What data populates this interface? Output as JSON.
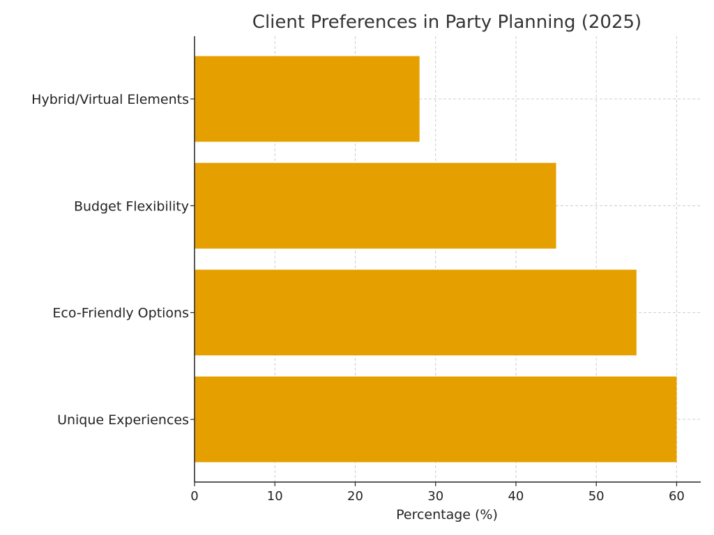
{
  "chart_data": {
    "type": "bar",
    "orientation": "horizontal",
    "title": "Client Preferences in Party Planning (2025)",
    "xlabel": "Percentage (%)",
    "ylabel": "",
    "categories": [
      "Unique Experiences",
      "Eco-Friendly Options",
      "Budget Flexibility",
      "Hybrid/Virtual Elements"
    ],
    "values": [
      60,
      55,
      45,
      28
    ],
    "xlim": [
      0,
      63
    ],
    "xticks": [
      "0",
      "10",
      "20",
      "30",
      "40",
      "50",
      "60"
    ],
    "grid": true,
    "bar_color": "#E5A000"
  }
}
